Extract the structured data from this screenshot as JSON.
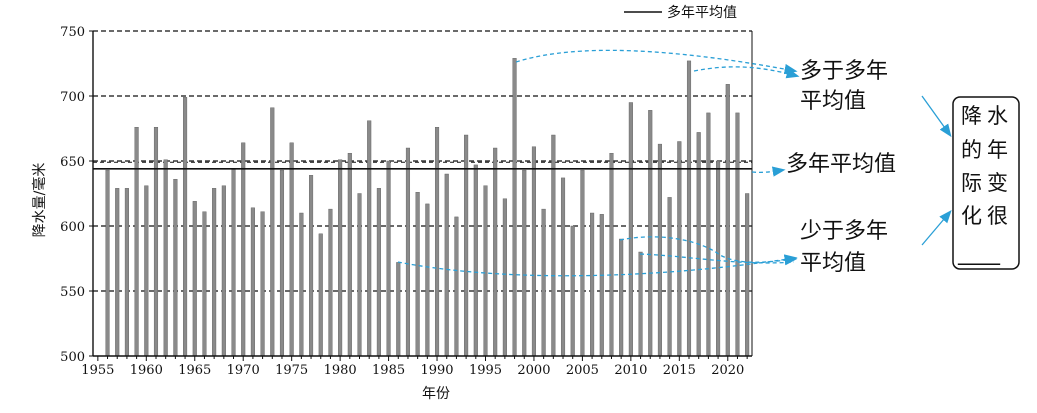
{
  "chart_data": {
    "type": "bar",
    "xlabel": "年份",
    "ylabel": "降水量/毫米",
    "ylim": [
      500,
      750
    ],
    "yticks": [
      500,
      550,
      600,
      650,
      700,
      750
    ],
    "xticks": [
      1955,
      1960,
      1965,
      1970,
      1975,
      1980,
      1985,
      1990,
      1995,
      2000,
      2005,
      2010,
      2015,
      2020
    ],
    "x": [
      1956,
      1957,
      1958,
      1959,
      1960,
      1961,
      1962,
      1963,
      1964,
      1965,
      1966,
      1967,
      1968,
      1969,
      1970,
      1971,
      1972,
      1973,
      1974,
      1975,
      1976,
      1977,
      1978,
      1979,
      1980,
      1981,
      1982,
      1983,
      1984,
      1985,
      1986,
      1987,
      1988,
      1989,
      1990,
      1991,
      1992,
      1993,
      1994,
      1995,
      1996,
      1997,
      1998,
      1999,
      2000,
      2001,
      2002,
      2003,
      2004,
      2005,
      2006,
      2007,
      2008,
      2009,
      2010,
      2011,
      2012,
      2013,
      2014,
      2015,
      2016,
      2017,
      2018,
      2019,
      2020,
      2021,
      2022
    ],
    "values": [
      643,
      629,
      629,
      676,
      631,
      676,
      651,
      636,
      699,
      619,
      611,
      629,
      631,
      644,
      664,
      614,
      611,
      691,
      643,
      664,
      610,
      639,
      594,
      613,
      651,
      656,
      625,
      681,
      629,
      650,
      572,
      660,
      626,
      617,
      676,
      640,
      607,
      670,
      647,
      631,
      660,
      621,
      729,
      643,
      661,
      613,
      670,
      637,
      600,
      643,
      610,
      609,
      656,
      590,
      695,
      580,
      689,
      663,
      622,
      665,
      727,
      672,
      687,
      650,
      709,
      687,
      625
    ],
    "average": 644,
    "legend": {
      "label": "多年平均值",
      "placement": "top"
    },
    "annotations": {
      "above": "多于多年平均值",
      "mean": "多年平均值",
      "below": "少于多年平均值",
      "box": "降水的年际变化很____"
    }
  },
  "annotation_lines": {
    "above": [
      "多于多年",
      "平均值"
    ],
    "mean": "多年平均值",
    "below": [
      "少于多年",
      "平均值"
    ],
    "box_cols": [
      [
        "降",
        "的",
        "际",
        "化"
      ],
      [
        "水",
        "年",
        "变",
        "很"
      ]
    ],
    "box_blank": "____"
  },
  "colors": {
    "bar": "#8a8a8a",
    "bar_edge": "#5a5a5a",
    "grid": "#111111",
    "arrow": "#2a9fd6",
    "text": "#111111"
  }
}
